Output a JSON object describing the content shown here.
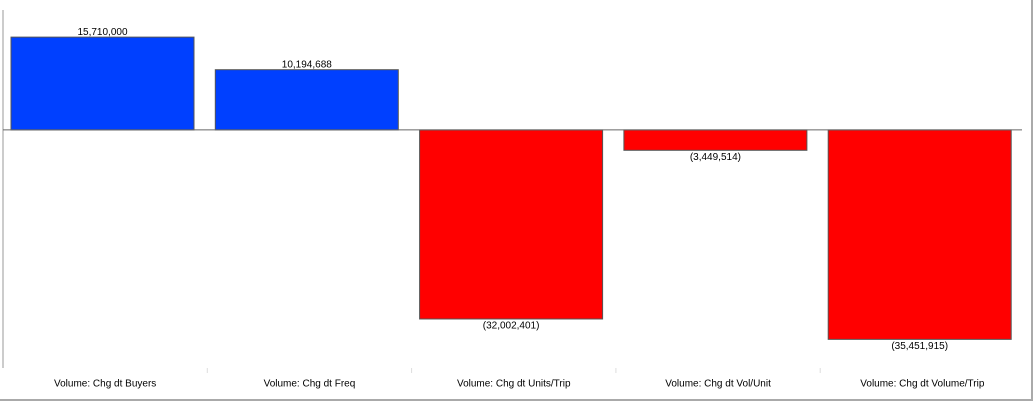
{
  "chart_data": {
    "type": "bar",
    "categories": [
      "Volume: Chg dt Buyers",
      "Volume: Chg dt Freq",
      "Volume: Chg dt Units/Trip",
      "Volume: Chg dt Vol/Unit",
      "Volume: Chg dt Volume/Trip"
    ],
    "values": [
      15710000,
      10194688,
      -32002401,
      -3449514,
      -35451915
    ],
    "value_labels": [
      "15,710,000",
      "10,194,688",
      "(32,002,401)",
      "(3,449,514)",
      "(35,451,915)"
    ],
    "colors": [
      "#0040ff",
      "#0040ff",
      "#ff0000",
      "#ff0000",
      "#ff0000"
    ],
    "ylim": [
      -40300000,
      20300000
    ]
  }
}
